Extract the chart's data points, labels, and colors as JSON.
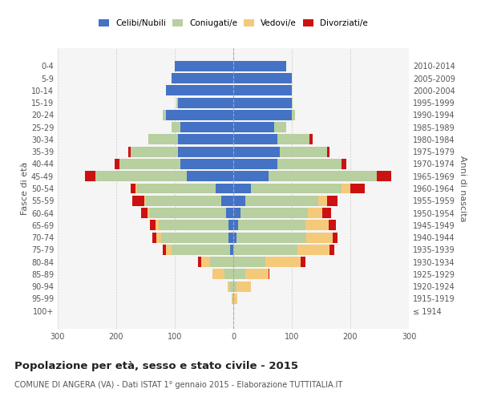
{
  "age_groups": [
    "100+",
    "95-99",
    "90-94",
    "85-89",
    "80-84",
    "75-79",
    "70-74",
    "65-69",
    "60-64",
    "55-59",
    "50-54",
    "45-49",
    "40-44",
    "35-39",
    "30-34",
    "25-29",
    "20-24",
    "15-19",
    "10-14",
    "5-9",
    "0-4"
  ],
  "birth_years": [
    "≤ 1914",
    "1915-1919",
    "1920-1924",
    "1925-1929",
    "1930-1934",
    "1935-1939",
    "1940-1944",
    "1945-1949",
    "1950-1954",
    "1955-1959",
    "1960-1964",
    "1965-1969",
    "1970-1974",
    "1975-1979",
    "1980-1984",
    "1985-1989",
    "1990-1994",
    "1995-1999",
    "2000-2004",
    "2005-2009",
    "2010-2014"
  ],
  "male": {
    "celibi": [
      0,
      0,
      0,
      0,
      0,
      5,
      8,
      8,
      12,
      20,
      30,
      80,
      90,
      95,
      95,
      90,
      115,
      95,
      115,
      105,
      100
    ],
    "coniugati": [
      0,
      2,
      5,
      15,
      40,
      100,
      115,
      120,
      130,
      130,
      135,
      155,
      105,
      80,
      50,
      15,
      5,
      2,
      0,
      0,
      0
    ],
    "vedovi": [
      0,
      1,
      5,
      20,
      15,
      10,
      8,
      5,
      4,
      2,
      2,
      0,
      0,
      0,
      0,
      0,
      0,
      0,
      0,
      0,
      0
    ],
    "divorziati": [
      0,
      0,
      0,
      0,
      5,
      5,
      8,
      10,
      12,
      20,
      8,
      18,
      8,
      5,
      0,
      0,
      0,
      0,
      0,
      0,
      0
    ]
  },
  "female": {
    "nubili": [
      0,
      0,
      0,
      0,
      0,
      0,
      5,
      8,
      12,
      20,
      30,
      60,
      75,
      80,
      75,
      70,
      100,
      100,
      100,
      100,
      90
    ],
    "coniugate": [
      0,
      2,
      5,
      20,
      55,
      110,
      120,
      115,
      115,
      125,
      155,
      185,
      110,
      80,
      55,
      20,
      5,
      2,
      0,
      0,
      0
    ],
    "vedove": [
      1,
      5,
      25,
      40,
      60,
      55,
      45,
      40,
      25,
      15,
      15,
      0,
      0,
      0,
      0,
      0,
      0,
      0,
      0,
      0,
      0
    ],
    "divorziate": [
      0,
      0,
      0,
      2,
      8,
      8,
      8,
      12,
      15,
      18,
      25,
      25,
      8,
      5,
      5,
      0,
      0,
      0,
      0,
      0,
      0
    ]
  },
  "colors": {
    "celibi_nubili": "#4472c4",
    "coniugati": "#b8cfa0",
    "vedovi": "#f5c97a",
    "divorziati": "#cc1111"
  },
  "xlim": 300,
  "title": "Popolazione per età, sesso e stato civile - 2015",
  "subtitle": "COMUNE DI ANGERA (VA) - Dati ISTAT 1° gennaio 2015 - Elaborazione TUTTITALIA.IT",
  "ylabel_left": "Fasce di età",
  "ylabel_right": "Anni di nascita",
  "bg_color": "#f5f5f5",
  "grid_color": "#cccccc"
}
